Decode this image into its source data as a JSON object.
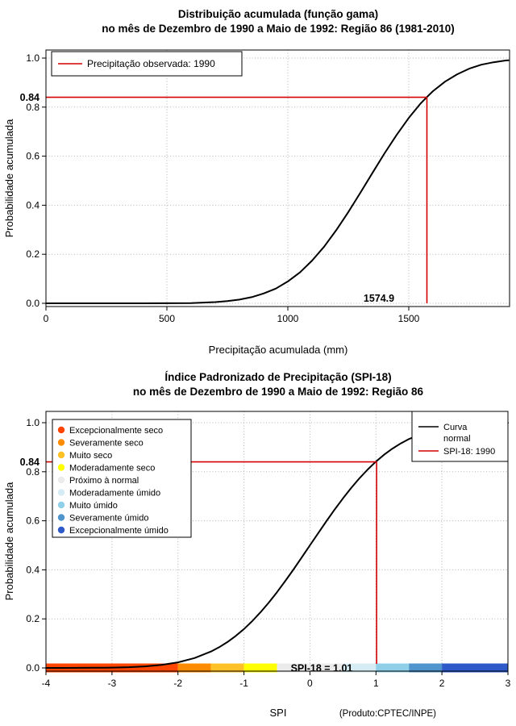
{
  "colors": {
    "curve": "#000000",
    "marker": "#d40000",
    "marker_label": "#a00000",
    "grid": "#b4b4b4"
  },
  "top_chart": {
    "title1": "Distribuição acumulada (função gama)",
    "title2": "no mês de Dezembro de 1990 a Maio de 1992: Região 86 (1981-2010)",
    "xlabel": "Precipitação acumulada (mm)",
    "ylabel": "Probabilidade acumulada",
    "legend_label": "Precipitação observada: 1990",
    "marker_x_label": "1574.9",
    "marker_y_label": "0.84"
  },
  "bottom_chart": {
    "title1": "Índice Padronizado de Precipitação (SPI-18)",
    "title2": "no mês de Dezembro de 1990 a Maio de 1992: Região 86",
    "xlabel": "SPI",
    "ylabel": "Probabilidade acumulada",
    "marker_y_label": "0.84",
    "spi_value_label": "SPI-18 = 1.01",
    "credit": "(Produto:CPTEC/INPE)",
    "legend_right": {
      "line1": "Curva",
      "line2": "normal",
      "item2": "SPI-18: 1990"
    },
    "legend_categories": [
      {
        "label": "Excepcionalmente seco",
        "color": "#ff4500"
      },
      {
        "label": "Severamente seco",
        "color": "#ff8c00"
      },
      {
        "label": "Muito seco",
        "color": "#ffc125"
      },
      {
        "label": "Moderadamente seco",
        "color": "#ffff00"
      },
      {
        "label": "Próximo à normal",
        "color": "#ebebeb"
      },
      {
        "label": "Moderadamente úmido",
        "color": "#d6ecf5"
      },
      {
        "label": "Muito úmido",
        "color": "#8fd0e8"
      },
      {
        "label": "Severamente úmido",
        "color": "#4f94cd"
      },
      {
        "label": "Excepcionalmente úmido",
        "color": "#2e59c8"
      }
    ]
  },
  "chart_data": [
    {
      "type": "line",
      "name": "gamma_cumulative_distribution",
      "title": "Distribuição acumulada (função gama)",
      "subtitle": "no mês de Dezembro de 1990 a Maio de 1992: Região 86 (1981-2010)",
      "xlabel": "Precipitação acumulada (mm)",
      "ylabel": "Probabilidade acumulada",
      "xlim": [
        0,
        1916
      ],
      "ylim": [
        0,
        1
      ],
      "grid": true,
      "legend_position": "topleft",
      "xticks": {
        "values": [
          0,
          500,
          1000,
          1500
        ],
        "labels": [
          "0",
          "500",
          "1000",
          "1500"
        ]
      },
      "yticks": {
        "values": [
          0,
          0.2,
          0.4,
          0.6,
          0.8,
          1
        ],
        "labels": [
          "0.0",
          "0.2",
          "0.4",
          "0.6",
          "0.8",
          "1.0"
        ]
      },
      "x": [
        0,
        400,
        500,
        600,
        650,
        700,
        750,
        800,
        850,
        900,
        950,
        1000,
        1050,
        1100,
        1150,
        1200,
        1250,
        1300,
        1350,
        1400,
        1450,
        1500,
        1550,
        1574.9,
        1600,
        1650,
        1700,
        1750,
        1800,
        1850,
        1900,
        1912
      ],
      "y": [
        0,
        0,
        0.0003,
        0.001,
        0.003,
        0.005,
        0.009,
        0.015,
        0.025,
        0.04,
        0.06,
        0.089,
        0.126,
        0.174,
        0.231,
        0.298,
        0.372,
        0.451,
        0.532,
        0.612,
        0.687,
        0.756,
        0.816,
        0.841,
        0.865,
        0.904,
        0.934,
        0.957,
        0.973,
        0.983,
        0.99,
        0.991
      ],
      "marker": {
        "x": 1574.9,
        "y": 0.84,
        "x_label": "1574.9",
        "y_label": "0.84"
      }
    },
    {
      "type": "line",
      "name": "normal_cumulative_distribution_spi18",
      "title": "Índice Padronizado de Precipitação (SPI-18)",
      "subtitle": "no mês de Dezembro de 1990 a Maio de 1992: Região 86",
      "xlabel": "SPI",
      "ylabel": "Probabilidade acumulada",
      "xlim": [
        -4,
        3
      ],
      "ylim": [
        0,
        1
      ],
      "grid": true,
      "legend_position": "topleft-and-topright",
      "xticks": {
        "values": [
          -4,
          -3,
          -2,
          -1,
          0,
          1,
          2,
          3
        ],
        "labels": [
          "-4",
          "-3",
          "-2",
          "-1",
          "0",
          "1",
          "2",
          "3"
        ]
      },
      "yticks": {
        "values": [
          0,
          0.2,
          0.4,
          0.6,
          0.8,
          1
        ],
        "labels": [
          "0.0",
          "0.2",
          "0.4",
          "0.6",
          "0.8",
          "1.0"
        ]
      },
      "x": [
        -4,
        -3.75,
        -3.5,
        -3.25,
        -3,
        -2.75,
        -2.5,
        -2.25,
        -2,
        -1.75,
        -1.5,
        -1.375,
        -1.25,
        -1.125,
        -1,
        -0.875,
        -0.75,
        -0.625,
        -0.5,
        -0.375,
        -0.25,
        -0.125,
        0,
        0.125,
        0.25,
        0.375,
        0.5,
        0.625,
        0.75,
        0.875,
        1,
        1.125,
        1.25,
        1.375,
        1.5,
        1.75,
        2,
        2.25,
        2.5,
        2.75,
        3
      ],
      "y": [
        0.0,
        0.0001,
        0.0002,
        0.0006,
        0.0013,
        0.003,
        0.0062,
        0.0122,
        0.0228,
        0.0401,
        0.0668,
        0.0846,
        0.1056,
        0.1303,
        0.1587,
        0.1908,
        0.2266,
        0.266,
        0.3085,
        0.3538,
        0.4013,
        0.4503,
        0.5,
        0.5497,
        0.5987,
        0.6462,
        0.6915,
        0.734,
        0.7734,
        0.8092,
        0.8413,
        0.8697,
        0.8944,
        0.9154,
        0.9332,
        0.9599,
        0.9772,
        0.9878,
        0.9938,
        0.997,
        0.9987
      ],
      "marker": {
        "x": 1.01,
        "y": 0.84,
        "x_label": "SPI-18 = 1.01",
        "y_label": "0.84"
      },
      "category_bar": {
        "breaks": [
          -4,
          -2,
          -1.5,
          -1,
          -0.5,
          0.5,
          1,
          1.5,
          2,
          3
        ],
        "colors": [
          "#ff4500",
          "#ff8c00",
          "#ffc125",
          "#ffff00",
          "#ebebeb",
          "#d6ecf5",
          "#8fd0e8",
          "#4f94cd",
          "#2e59c8"
        ],
        "labels": [
          "Excepcionalmente seco",
          "Severamente seco",
          "Muito seco",
          "Moderadamente seco",
          "Próximo à normal",
          "Moderadamente úmido",
          "Muito úmido",
          "Severamente úmido",
          "Excepcionalmente úmido"
        ]
      }
    }
  ]
}
